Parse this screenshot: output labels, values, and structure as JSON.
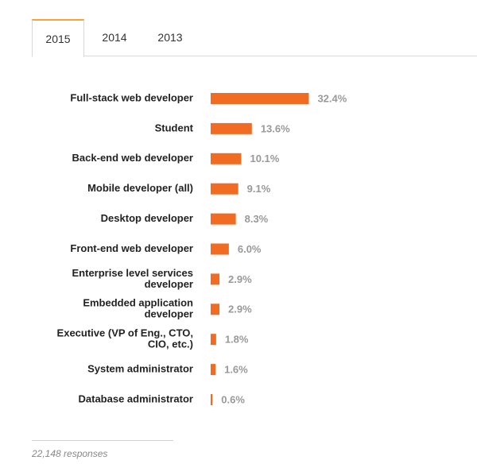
{
  "tabs": [
    {
      "label": "2015",
      "active": true
    },
    {
      "label": "2014",
      "active": false
    },
    {
      "label": "2013",
      "active": false
    }
  ],
  "colors": {
    "bar": "#f26b22",
    "value_text": "#999999",
    "accent_tab": "#f7a33a"
  },
  "chart_data": {
    "type": "bar",
    "orientation": "horizontal",
    "categories": [
      [
        "Full-stack web developer"
      ],
      [
        "Student"
      ],
      [
        "Back-end web developer"
      ],
      [
        "Mobile developer (all)"
      ],
      [
        "Desktop developer"
      ],
      [
        "Front-end web developer"
      ],
      [
        "Enterprise level services",
        "developer"
      ],
      [
        "Embedded application",
        "developer"
      ],
      [
        "Executive (VP of Eng., CTO,",
        "CIO, etc.)"
      ],
      [
        "System administrator"
      ],
      [
        "Database administrator"
      ]
    ],
    "values": [
      32.4,
      13.6,
      10.1,
      9.1,
      8.3,
      6.0,
      2.9,
      2.9,
      1.8,
      1.6,
      0.6
    ],
    "value_labels": [
      "32.4%",
      "13.6%",
      "10.1%",
      "9.1%",
      "8.3%",
      "6.0%",
      "2.9%",
      "2.9%",
      "1.8%",
      "1.6%",
      "0.6%"
    ],
    "unit": "%",
    "grid": false,
    "legend": "none"
  },
  "footer": {
    "responses": "22,148 responses"
  }
}
